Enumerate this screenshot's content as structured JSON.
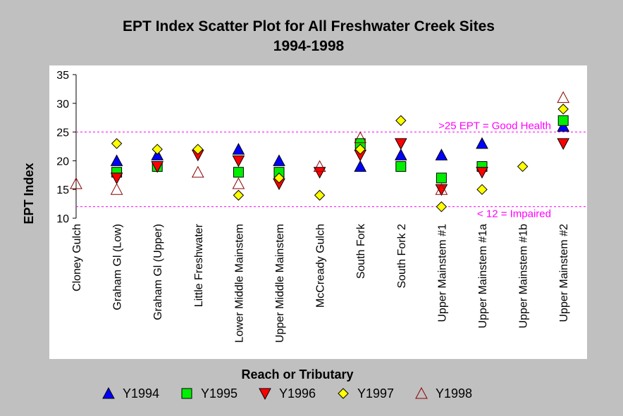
{
  "chart_data": {
    "type": "scatter",
    "title": "EPT Index Scatter Plot for All Freshwater Creek Sites",
    "subtitle": "1994-1998",
    "xlabel": "Reach or Tributary",
    "ylabel": "EPT Index",
    "ylim": [
      10,
      35
    ],
    "yticks": [
      10,
      15,
      20,
      25,
      30,
      35
    ],
    "grid": false,
    "legend_position": "bottom",
    "categories": [
      "Cloney Gulch",
      "Graham Gl (Low)",
      "Graham Gl (Upper)",
      "Little Freshwater",
      "Lower Middle Mainstem",
      "Upper Middle Mainstem",
      "McCready Gulch",
      "South Fork",
      "South Fork 2",
      "Upper Mainstem #1",
      "Upper Mainstem #1a",
      "Upper Mainstem #1b",
      "Upper Mainstem #2"
    ],
    "reference_lines": [
      {
        "y": 25,
        "label": ">25 EPT = Good Health",
        "color": "#ff00ff"
      },
      {
        "y": 12,
        "label": "< 12 = Impaired",
        "color": "#ff00ff"
      }
    ],
    "series": [
      {
        "name": "Y1994",
        "marker": "triangle-up",
        "color": "#0000ff",
        "stroke": "#000000",
        "points": [
          [
            1,
            20
          ],
          [
            2,
            21
          ],
          [
            4,
            22
          ],
          [
            5,
            20
          ],
          [
            7,
            19
          ],
          [
            8,
            21
          ],
          [
            9,
            21
          ],
          [
            10,
            23
          ],
          [
            12,
            26
          ]
        ]
      },
      {
        "name": "Y1995",
        "marker": "square",
        "color": "#00ee00",
        "stroke": "#000000",
        "points": [
          [
            1,
            18
          ],
          [
            2,
            19
          ],
          [
            4,
            18
          ],
          [
            5,
            18
          ],
          [
            7,
            23
          ],
          [
            8,
            19
          ],
          [
            9,
            17
          ],
          [
            10,
            19
          ],
          [
            12,
            27
          ]
        ]
      },
      {
        "name": "Y1996",
        "marker": "triangle-down",
        "color": "#ff0000",
        "stroke": "#000000",
        "points": [
          [
            1,
            17
          ],
          [
            2,
            19
          ],
          [
            3,
            21
          ],
          [
            4,
            20
          ],
          [
            5,
            16
          ],
          [
            6,
            18
          ],
          [
            7,
            21
          ],
          [
            8,
            23
          ],
          [
            9,
            15
          ],
          [
            10,
            18
          ],
          [
            12,
            23
          ]
        ]
      },
      {
        "name": "Y1997",
        "marker": "diamond",
        "color": "#ffff00",
        "stroke": "#000000",
        "points": [
          [
            1,
            23
          ],
          [
            2,
            22
          ],
          [
            3,
            22
          ],
          [
            4,
            14
          ],
          [
            5,
            17
          ],
          [
            6,
            14
          ],
          [
            7,
            22
          ],
          [
            8,
            27
          ],
          [
            9,
            12
          ],
          [
            10,
            15
          ],
          [
            11,
            19
          ],
          [
            12,
            29
          ]
        ]
      },
      {
        "name": "Y1998",
        "marker": "triangle-up-open",
        "color": "#8b0000",
        "stroke": "#8b0000",
        "points": [
          [
            0,
            16
          ],
          [
            1,
            15
          ],
          [
            3,
            18
          ],
          [
            4,
            16
          ],
          [
            6,
            19
          ],
          [
            7,
            24
          ],
          [
            9,
            15
          ],
          [
            12,
            31
          ]
        ]
      }
    ]
  }
}
